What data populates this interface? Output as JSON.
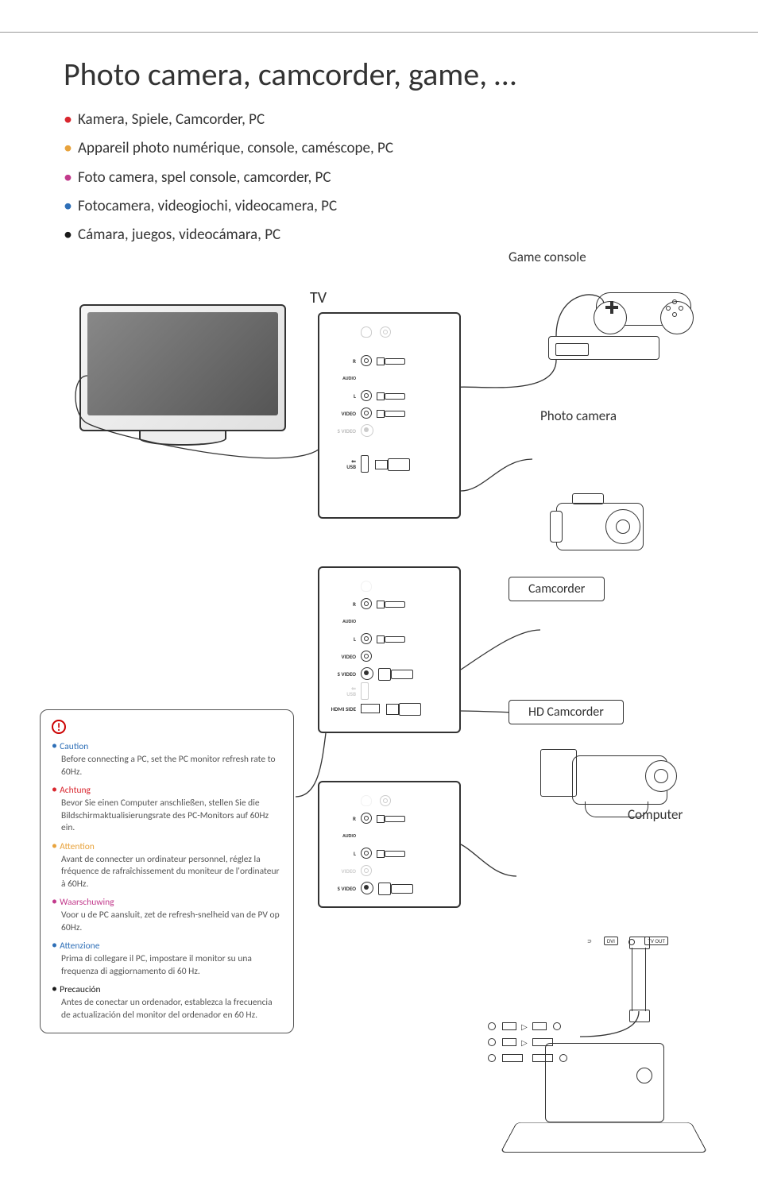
{
  "title": "Photo camera, camcorder, game, …",
  "languages": [
    {
      "text": "Kamera, Spiele, Camcorder, PC",
      "bullet_color": "#d9262e"
    },
    {
      "text": "Appareil photo numérique, console, caméscope, PC",
      "bullet_color": "#e8a33d"
    },
    {
      "text": "Foto camera, spel console, camcorder, PC",
      "bullet_color": "#c23a8c"
    },
    {
      "text": "Fotocamera, videogiochi, videocamera, PC",
      "bullet_color": "#2e6fb7"
    },
    {
      "text": "Cámara, juegos, videocámara, PC",
      "bullet_color": "#1a1a1a"
    }
  ],
  "labels": {
    "tv": "TV",
    "game_console": "Game console",
    "photo_camera": "Photo camera",
    "camcorder": "Camcorder",
    "hd_camcorder": "HD Camcorder",
    "computer": "Computer"
  },
  "ports": {
    "audio_r": "R",
    "audio": "AUDIO",
    "audio_l": "L",
    "video": "VIDEO",
    "s_video": "S VIDEO",
    "usb": "USB",
    "hdmi_side": "HDMI SIDE",
    "dvi": "DVI",
    "tv_out": "TV OUT"
  },
  "caution": {
    "icon": "!",
    "items": [
      {
        "heading": "Caution",
        "color": "#2e6fb7",
        "body": "Before connecting a PC, set the PC monitor refresh rate to 60Hz."
      },
      {
        "heading": "Achtung",
        "color": "#d9262e",
        "body": "Bevor Sie einen Computer anschließen, stellen Sie die Bildschirmaktualisierungsrate des PC-Monitors auf 60Hz ein."
      },
      {
        "heading": "Attention",
        "color": "#e8a33d",
        "body": "Avant de connecter un ordinateur personnel, réglez la fréquence de rafraîchissement du moniteur de l'ordinateur à 60Hz."
      },
      {
        "heading": "Waarschuwing",
        "color": "#c23a8c",
        "body": "Voor u de PC aansluit, zet de refresh-snelheid van de PV op 60Hz."
      },
      {
        "heading": "Attenzione",
        "color": "#2e6fb7",
        "body": "Prima di collegare il PC, impostare il monitor su una frequenza di aggiornamento di 60 Hz."
      },
      {
        "heading": "Precaución",
        "color": "#1a1a1a",
        "body": "Antes de conectar un ordenador, establezca la frecuencia de actualización del monitor del ordenador en 60 Hz."
      }
    ]
  }
}
